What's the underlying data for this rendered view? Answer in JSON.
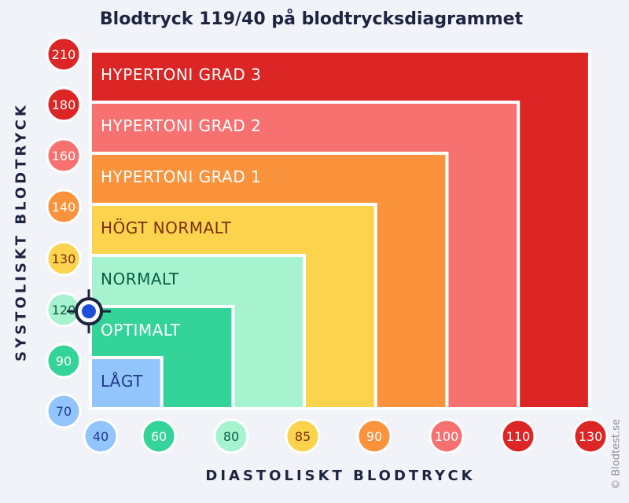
{
  "chart_data": {
    "type": "area",
    "title": "Blodtryck 119/40 på blodtrycksdiagrammet",
    "xlabel": "DIASTOLISKT BLODTRYCK",
    "ylabel": "SYSTOLISKT BLODTRYCK",
    "x_ticks": [
      40,
      60,
      80,
      85,
      90,
      100,
      110,
      130
    ],
    "y_ticks": [
      70,
      90,
      120,
      130,
      140,
      160,
      180,
      210
    ],
    "zones": [
      {
        "label": "HYPERTONI GRAD 3",
        "x_max": 130,
        "y_max": 210,
        "color": "#dc2626",
        "text_color": "#ffffff"
      },
      {
        "label": "HYPERTONI GRAD 2",
        "x_max": 110,
        "y_max": 180,
        "color": "#f87171",
        "text_color": "#ffffff"
      },
      {
        "label": "HYPERTONI GRAD 1",
        "x_max": 100,
        "y_max": 160,
        "color": "#fb923c",
        "text_color": "#ffffff"
      },
      {
        "label": "HÖGT NORMALT",
        "x_max": 90,
        "y_max": 140,
        "color": "#fcd34d",
        "text_color": "#7a2e0e"
      },
      {
        "label": "NORMALT",
        "x_max": 85,
        "y_max": 130,
        "color": "#a7f3d0",
        "text_color": "#065f46"
      },
      {
        "label": "OPTIMALT",
        "x_max": 80,
        "y_max": 120,
        "color": "#34d399",
        "text_color": "#ffffff"
      },
      {
        "label": "LÅGT",
        "x_max": 60,
        "y_max": 90,
        "color": "#93c5fd",
        "text_color": "#1e3a8a"
      }
    ],
    "x_tick_colors": [
      "#93c5fd",
      "#34d399",
      "#a7f3d0",
      "#fcd34d",
      "#fb923c",
      "#f87171",
      "#dc2626",
      "#dc2626"
    ],
    "x_tick_text_colors": [
      "#1e3a8a",
      "#ffffff",
      "#065f46",
      "#7a2e0e",
      "#ffffff",
      "#ffffff",
      "#ffffff",
      "#ffffff"
    ],
    "y_tick_colors": [
      "#93c5fd",
      "#34d399",
      "#a7f3d0",
      "#fcd34d",
      "#fb923c",
      "#f87171",
      "#dc2626",
      "#dc2626"
    ],
    "y_tick_text_colors": [
      "#1e3a8a",
      "#ffffff",
      "#065f46",
      "#7a2e0e",
      "#ffffff",
      "#ffffff",
      "#ffffff",
      "#ffffff"
    ],
    "marker": {
      "systolic": 119,
      "diastolic": 40,
      "color": "#1d4ed8"
    }
  },
  "credit": "© Blodtest.se"
}
